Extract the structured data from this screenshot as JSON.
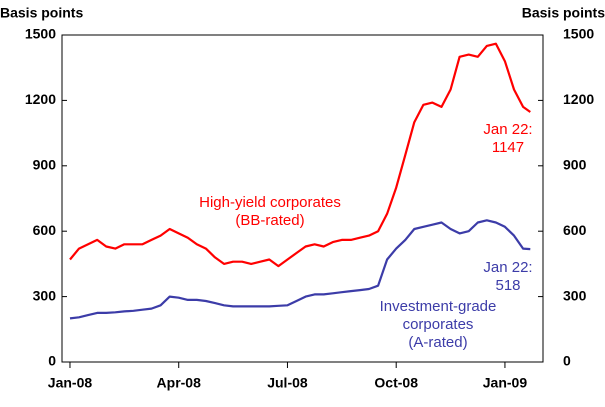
{
  "chart_data": {
    "type": "line",
    "y_label": "Basis points",
    "y2_label": "Basis points",
    "x": [
      0,
      0.25,
      0.5,
      0.75,
      1,
      1.25,
      1.5,
      1.75,
      2,
      2.25,
      2.5,
      2.75,
      3,
      3.25,
      3.5,
      3.75,
      4,
      4.25,
      4.5,
      4.75,
      5,
      5.25,
      5.5,
      5.75,
      6,
      6.25,
      6.5,
      6.75,
      7,
      7.25,
      7.5,
      7.75,
      8,
      8.25,
      8.5,
      8.75,
      9,
      9.25,
      9.5,
      9.75,
      10,
      10.25,
      10.5,
      10.75,
      11,
      11.25,
      11.5,
      11.75,
      12,
      12.25,
      12.5,
      12.7
    ],
    "xlim": [
      -0.22,
      13.05
    ],
    "xticks": [
      {
        "value": 0,
        "label": "Jan-08"
      },
      {
        "value": 3,
        "label": "Apr-08"
      },
      {
        "value": 6,
        "label": "Jul-08"
      },
      {
        "value": 9,
        "label": "Oct-08"
      },
      {
        "value": 12,
        "label": "Jan-09"
      }
    ],
    "ylim": [
      0,
      1500
    ],
    "yticks": [
      0,
      300,
      600,
      900,
      1200,
      1500
    ],
    "y2lim": [
      0,
      1500
    ],
    "y2ticks": [
      0,
      300,
      600,
      900,
      1200,
      1500
    ],
    "grid": false,
    "series": [
      {
        "name": "High-yield corporates (BB-rated)",
        "color": "#ff0000",
        "values": [
          470,
          520,
          540,
          560,
          530,
          520,
          540,
          540,
          540,
          560,
          580,
          610,
          590,
          570,
          540,
          520,
          480,
          450,
          460,
          460,
          450,
          460,
          470,
          440,
          470,
          500,
          530,
          540,
          530,
          550,
          560,
          560,
          570,
          580,
          600,
          680,
          800,
          950,
          1100,
          1180,
          1190,
          1170,
          1250,
          1400,
          1410,
          1400,
          1450,
          1460,
          1380,
          1250,
          1170,
          1147
        ]
      },
      {
        "name": "Investment-grade corporates (A-rated)",
        "color": "#3c3ca8",
        "values": [
          200,
          205,
          215,
          225,
          225,
          228,
          232,
          235,
          240,
          245,
          260,
          300,
          295,
          285,
          285,
          280,
          270,
          260,
          255,
          255,
          255,
          255,
          255,
          258,
          260,
          280,
          300,
          310,
          310,
          315,
          320,
          325,
          330,
          335,
          350,
          470,
          520,
          560,
          610,
          620,
          630,
          640,
          610,
          590,
          600,
          640,
          650,
          640,
          620,
          580,
          520,
          518
        ]
      }
    ],
    "annotations": [
      {
        "lines": [
          "High-yield corporates",
          "(BB-rated)"
        ],
        "color": "#ff0000"
      },
      {
        "lines": [
          "Investment-grade",
          "corporates",
          "(A-rated)"
        ],
        "color": "#3c3ca8"
      },
      {
        "lines": [
          "Jan 22:"
        ],
        "color": "#ff0000"
      },
      {
        "lines": [
          "Jan 22:"
        ],
        "color": "#3c3ca8"
      }
    ]
  }
}
